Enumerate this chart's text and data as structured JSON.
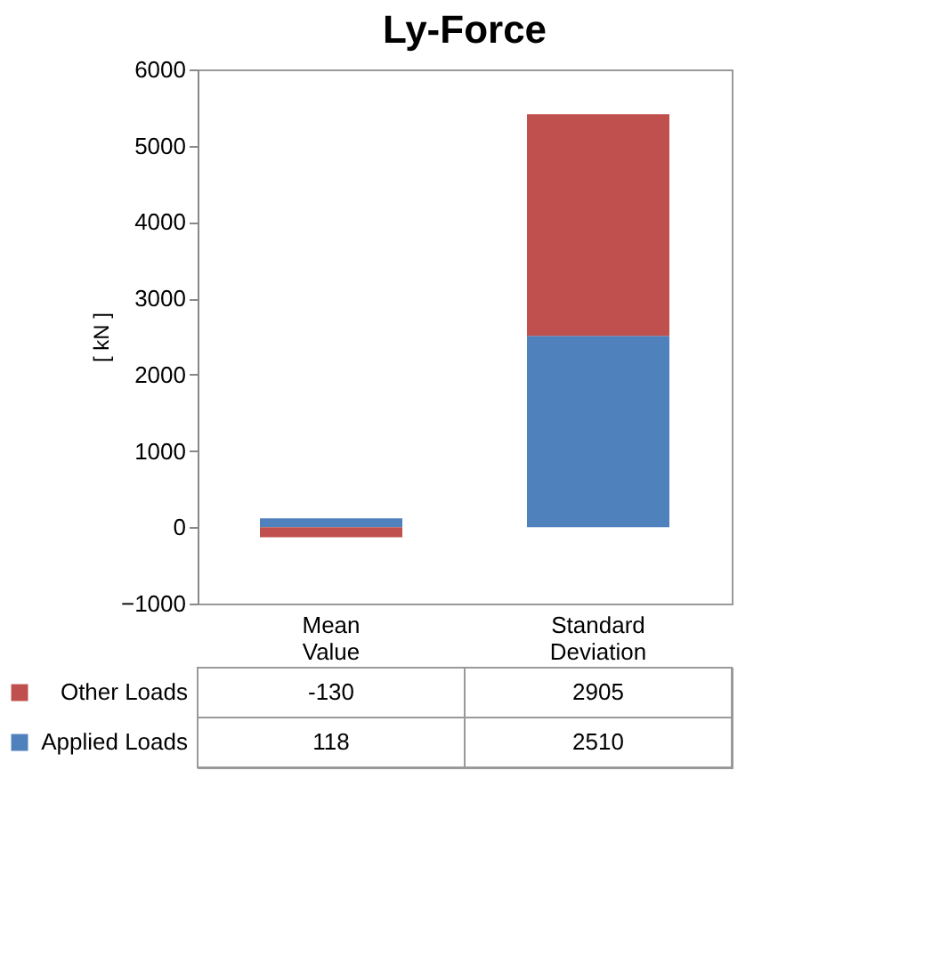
{
  "chart_data": {
    "type": "bar",
    "title": "Ly-Force",
    "ylabel": "[ kN ]",
    "categories": [
      "Mean Value",
      "Standard Deviation"
    ],
    "stacked": true,
    "series": [
      {
        "name": "Applied Loads",
        "color": "#4f81bd",
        "values": [
          118,
          2510
        ]
      },
      {
        "name": "Other Loads",
        "color": "#c0504d",
        "values": [
          -130,
          2905
        ]
      }
    ],
    "ylim": [
      -1000,
      6000
    ],
    "yticks": [
      -1000,
      0,
      1000,
      2000,
      3000,
      4000,
      5000,
      6000
    ],
    "grid": false,
    "data_labels": true,
    "legend": "bottom"
  }
}
